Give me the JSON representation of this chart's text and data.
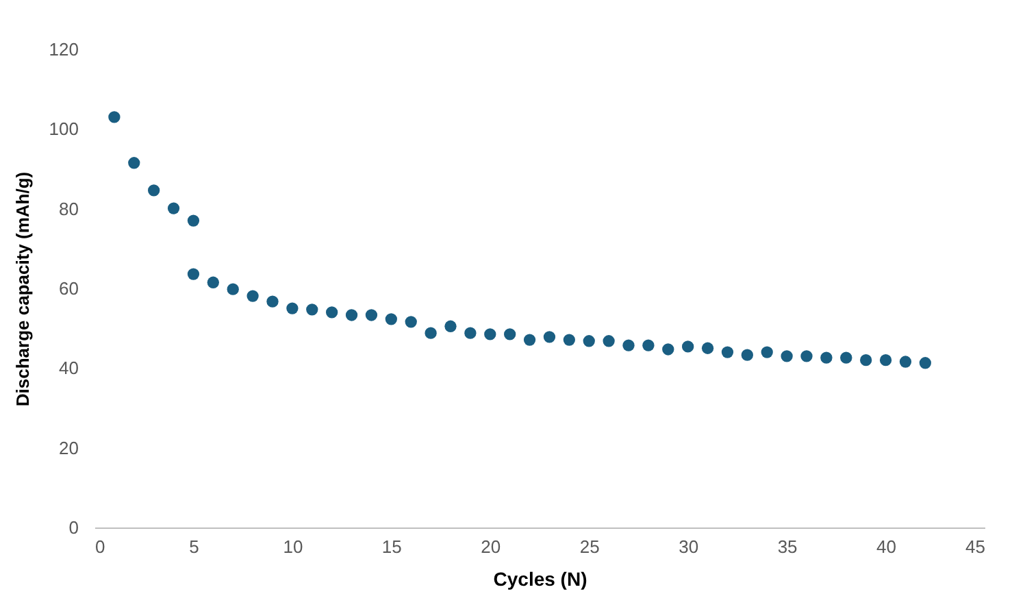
{
  "chart_data": {
    "type": "scatter",
    "xlabel": "Cycles (N)",
    "ylabel": "Discharge capacity (mAh/g)",
    "x": [
      1,
      2,
      3,
      4,
      5,
      5,
      6,
      7,
      8,
      9,
      10,
      11,
      12,
      13,
      14,
      15,
      16,
      17,
      18,
      19,
      20,
      21,
      22,
      23,
      24,
      25,
      26,
      27,
      28,
      29,
      30,
      31,
      32,
      33,
      34,
      35,
      36,
      37,
      38,
      39,
      40,
      41,
      42
    ],
    "series": [
      {
        "color": "#1a5e82",
        "values": [
          103,
          91.5,
          84.6,
          80.1,
          77,
          63.6,
          61.5,
          59.8,
          58.1,
          56.7,
          55,
          54.7,
          54,
          53.3,
          53.3,
          52.3,
          51.6,
          48.8,
          50.5,
          48.8,
          48.5,
          48.5,
          47.1,
          47.8,
          47.1,
          46.8,
          46.8,
          45.7,
          45.7,
          44.7,
          45.4,
          45,
          44,
          43.3,
          44,
          43,
          43,
          42.6,
          42.6,
          42,
          42,
          41.6,
          41.3
        ]
      }
    ],
    "xlim": [
      0,
      45
    ],
    "xticks": [
      0,
      5,
      10,
      15,
      20,
      25,
      30,
      35,
      40,
      45
    ],
    "ylim": [
      0,
      120
    ],
    "yticks": [
      0,
      20,
      40,
      60,
      80,
      100,
      120
    ],
    "marker": "circle",
    "grid": false,
    "legend": false
  }
}
